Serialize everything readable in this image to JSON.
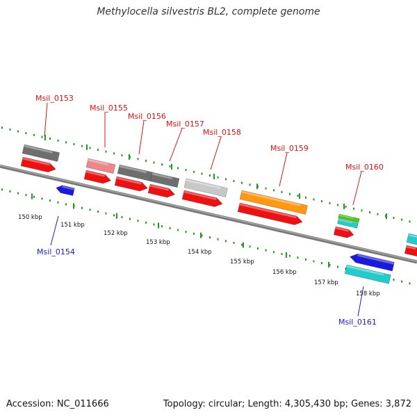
{
  "title": "Methylocella silvestris BL2, complete genome",
  "footer": {
    "accession": "Accession: NC_011666",
    "topology": "Topology: circular; Length: 4,305,430 bp; Genes: 3,872"
  },
  "colors": {
    "backbone": "#8c8c8c",
    "tick": "#1f9a1f",
    "gene_label_plus": "#dd1111",
    "gene_label_minus": "#1a1acc",
    "cds": "#ee1111",
    "dark_gray": "#6e6e6e",
    "pink": "#ee8888",
    "light_gray": "#c8c8c8",
    "orange": "#ff9911",
    "green": "#44cc22",
    "cyan": "#22cccc",
    "blue": "#1a1adc"
  },
  "scale_labels": [
    "150 kbp",
    "151 kbp",
    "152 kbp",
    "153 kbp",
    "154 kbp",
    "155 kbp",
    "156 kbp",
    "157 kbp",
    "158 kbp"
  ],
  "gene_labels": [
    {
      "text": "Msil_0153",
      "strand": "+"
    },
    {
      "text": "Msil_0155",
      "strand": "+"
    },
    {
      "text": "Msil_0156",
      "strand": "+"
    },
    {
      "text": "Msil_0157",
      "strand": "+"
    },
    {
      "text": "Msil_0158",
      "strand": "+"
    },
    {
      "text": "Msil_0159",
      "strand": "+"
    },
    {
      "text": "Msil_0160",
      "strand": "+"
    },
    {
      "text": "Msil_0154",
      "strand": "-"
    },
    {
      "text": "Msil_0161",
      "strand": "-"
    }
  ]
}
